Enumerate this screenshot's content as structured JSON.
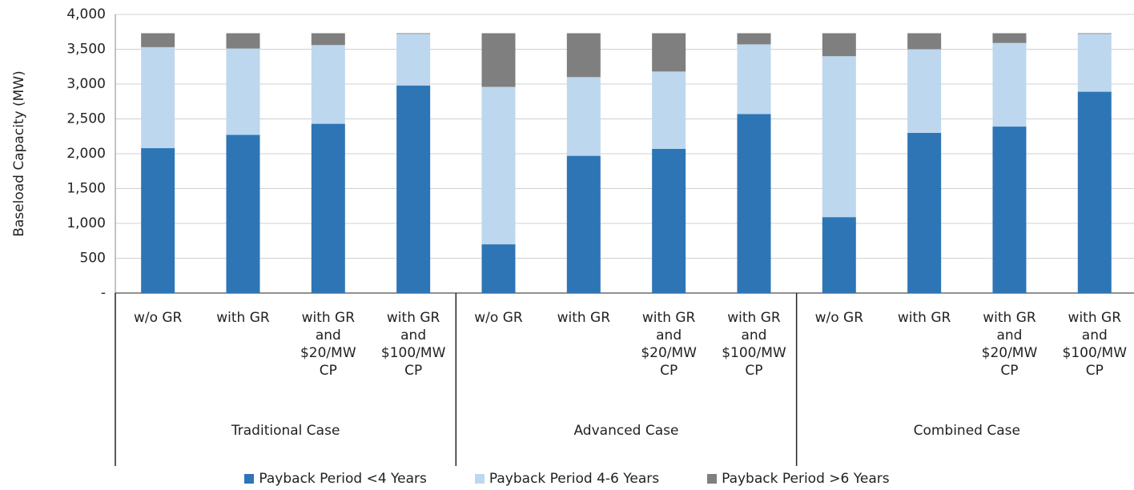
{
  "chart_data": {
    "type": "stacked_bar",
    "y_label": "Baseload Capacity (MW)",
    "groups": [
      {
        "name": "Traditional Case",
        "categories": [
          "w/o GR",
          "with GR",
          "with GR and $20/MW CP",
          "with GR and $100/MW CP"
        ]
      },
      {
        "name": "Advanced Case",
        "categories": [
          "w/o GR",
          "with GR",
          "with GR and $20/MW CP",
          "with GR and $100/MW CP"
        ]
      },
      {
        "name": "Combined Case",
        "categories": [
          "w/o GR",
          "with GR",
          "with GR and $20/MW CP",
          "with GR and $100/MW CP"
        ]
      }
    ],
    "series": [
      {
        "name": "Payback Period <4 Years",
        "color": "#2e75b6",
        "values": [
          2080,
          2270,
          2430,
          2980,
          700,
          1970,
          2070,
          2570,
          1090,
          2300,
          2390,
          2890
        ]
      },
      {
        "name": "Payback Period 4-6 Years",
        "color": "#bdd7ee",
        "values": [
          1450,
          1240,
          1130,
          740,
          2260,
          1130,
          1110,
          1000,
          2310,
          1200,
          1200,
          830
        ]
      },
      {
        "name": "Payback Period >6 Years",
        "color": "#7f7f7f",
        "values": [
          200,
          220,
          170,
          10,
          770,
          630,
          550,
          160,
          330,
          230,
          140,
          10
        ]
      }
    ],
    "ylim": [
      0,
      4000
    ],
    "yticks": [
      {
        "value": 0,
        "label": "-"
      },
      500,
      {
        "value": 1000,
        "label": "1,000"
      },
      {
        "value": 1500,
        "label": "1,500"
      },
      {
        "value": 2000,
        "label": "2,000"
      },
      {
        "value": 2500,
        "label": "2,500"
      },
      {
        "value": 3000,
        "label": "3,000"
      },
      {
        "value": 3500,
        "label": "3,500"
      },
      {
        "value": 4000,
        "label": "4,000"
      }
    ],
    "grid": true
  }
}
